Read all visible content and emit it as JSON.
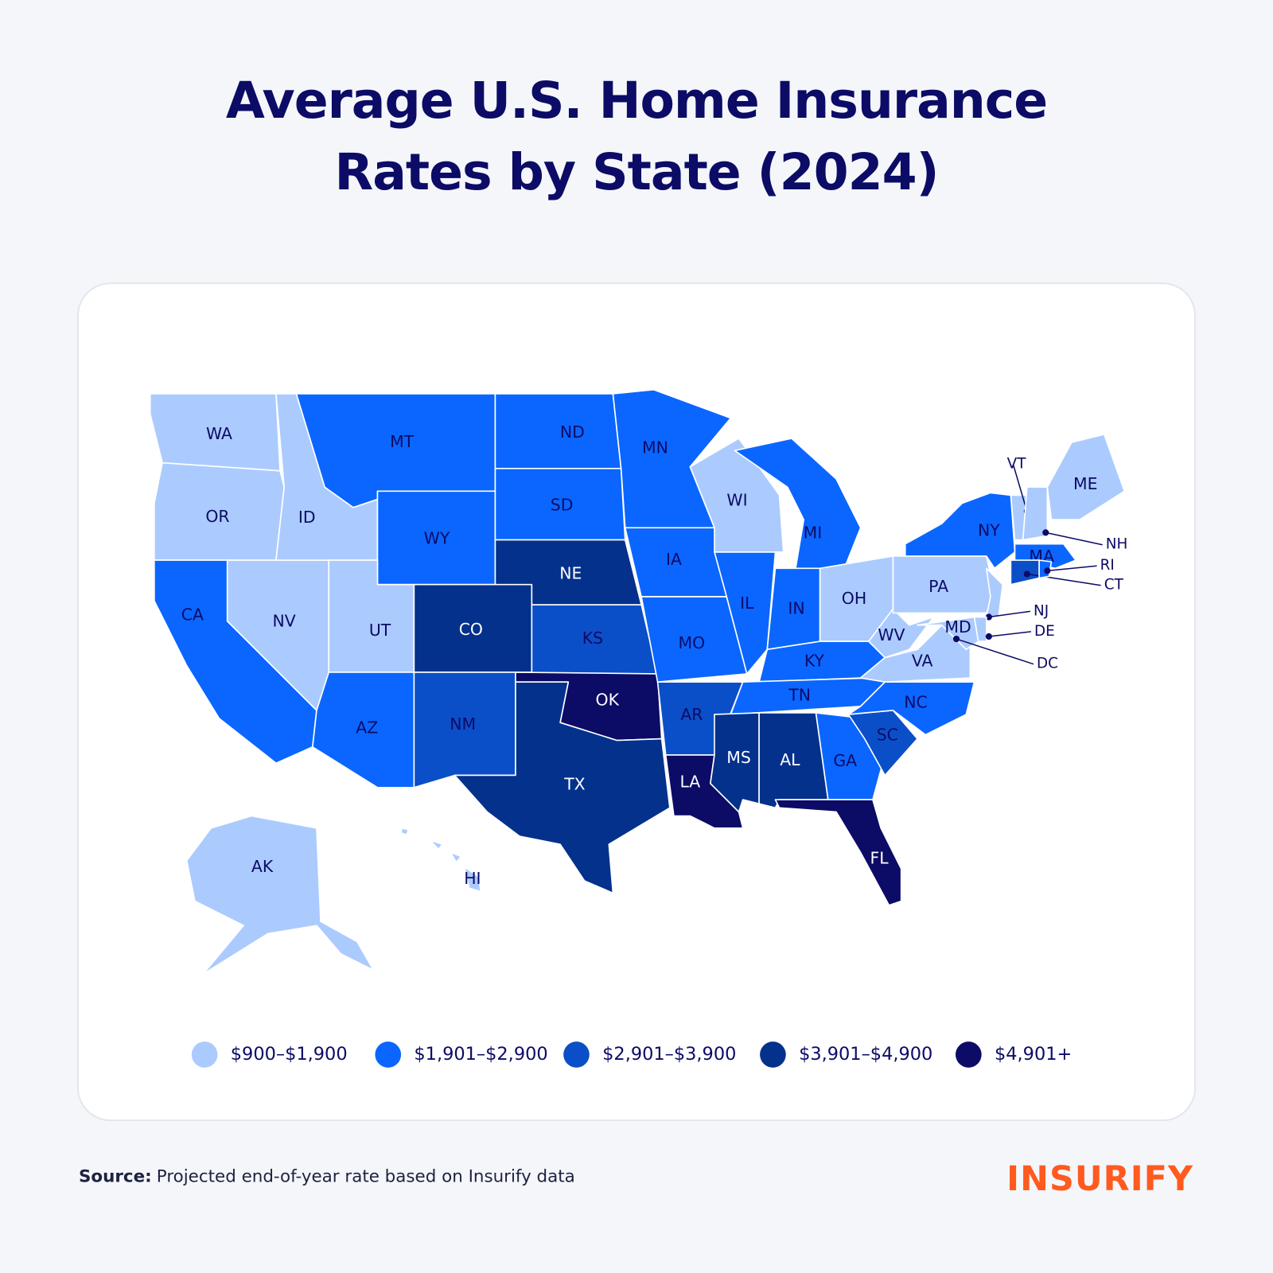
{
  "title": "Average U.S. Home Insurance Rates by State (2024)",
  "legend": [
    {
      "label": "$900–$1,900",
      "color": "#abcbff"
    },
    {
      "label": "$1,901–$2,900",
      "color": "#0a66ff"
    },
    {
      "label": "$2,901–$3,900",
      "color": "#0b4fc8"
    },
    {
      "label": "$3,901–$4,900",
      "color": "#04318c"
    },
    {
      "label": "$4,901+",
      "color": "#0c0b66"
    }
  ],
  "states": [
    {
      "label": "WA",
      "color": "#abcbff"
    },
    {
      "label": "OR",
      "color": "#abcbff"
    },
    {
      "label": "CA",
      "color": "#0a66ff"
    },
    {
      "label": "NV",
      "color": "#abcbff"
    },
    {
      "label": "ID",
      "color": "#abcbff"
    },
    {
      "label": "MT",
      "color": "#0a66ff"
    },
    {
      "label": "WY",
      "color": "#0a66ff"
    },
    {
      "label": "UT",
      "color": "#abcbff"
    },
    {
      "label": "AZ",
      "color": "#0a66ff"
    },
    {
      "label": "CO",
      "color": "#04318c"
    },
    {
      "label": "NM",
      "color": "#0b4fc8"
    },
    {
      "label": "ND",
      "color": "#0a66ff"
    },
    {
      "label": "SD",
      "color": "#0a66ff"
    },
    {
      "label": "NE",
      "color": "#04318c"
    },
    {
      "label": "KS",
      "color": "#0b4fc8"
    },
    {
      "label": "OK",
      "color": "#0c0b66"
    },
    {
      "label": "TX",
      "color": "#04318c"
    },
    {
      "label": "MN",
      "color": "#0a66ff"
    },
    {
      "label": "IA",
      "color": "#0a66ff"
    },
    {
      "label": "MO",
      "color": "#0a66ff"
    },
    {
      "label": "AR",
      "color": "#0b4fc8"
    },
    {
      "label": "LA",
      "color": "#0c0b66"
    },
    {
      "label": "WI",
      "color": "#abcbff"
    },
    {
      "label": "IL",
      "color": "#0a66ff"
    },
    {
      "label": "MI",
      "color": "#0a66ff"
    },
    {
      "label": "IN",
      "color": "#0a66ff"
    },
    {
      "label": "OH",
      "color": "#abcbff"
    },
    {
      "label": "KY",
      "color": "#0a66ff"
    },
    {
      "label": "TN",
      "color": "#0a66ff"
    },
    {
      "label": "MS",
      "color": "#04318c"
    },
    {
      "label": "AL",
      "color": "#04318c"
    },
    {
      "label": "GA",
      "color": "#0a66ff"
    },
    {
      "label": "FL",
      "color": "#0c0b66"
    },
    {
      "label": "SC",
      "color": "#0b4fc8"
    },
    {
      "label": "NC",
      "color": "#0a66ff"
    },
    {
      "label": "VA",
      "color": "#abcbff"
    },
    {
      "label": "WV",
      "color": "#abcbff"
    },
    {
      "label": "PA",
      "color": "#abcbff"
    },
    {
      "label": "NY",
      "color": "#0a66ff"
    },
    {
      "label": "NJ",
      "color": "#abcbff"
    },
    {
      "label": "DE",
      "color": "#abcbff"
    },
    {
      "label": "MD",
      "color": "#abcbff"
    },
    {
      "label": "VT",
      "color": "#abcbff"
    },
    {
      "label": "NH",
      "color": "#abcbff"
    },
    {
      "label": "ME",
      "color": "#abcbff"
    },
    {
      "label": "MA",
      "color": "#0a66ff"
    },
    {
      "label": "CT",
      "color": "#0b4fc8"
    },
    {
      "label": "RI",
      "color": "#0a66ff"
    },
    {
      "label": "AK",
      "color": "#abcbff"
    },
    {
      "label": "HI",
      "color": "#abcbff"
    },
    {
      "label": "DC"
    }
  ],
  "source": {
    "label": "Source:",
    "text": "Projected end-of-year rate based on Insurify data"
  },
  "logo": "INSURIFY"
}
